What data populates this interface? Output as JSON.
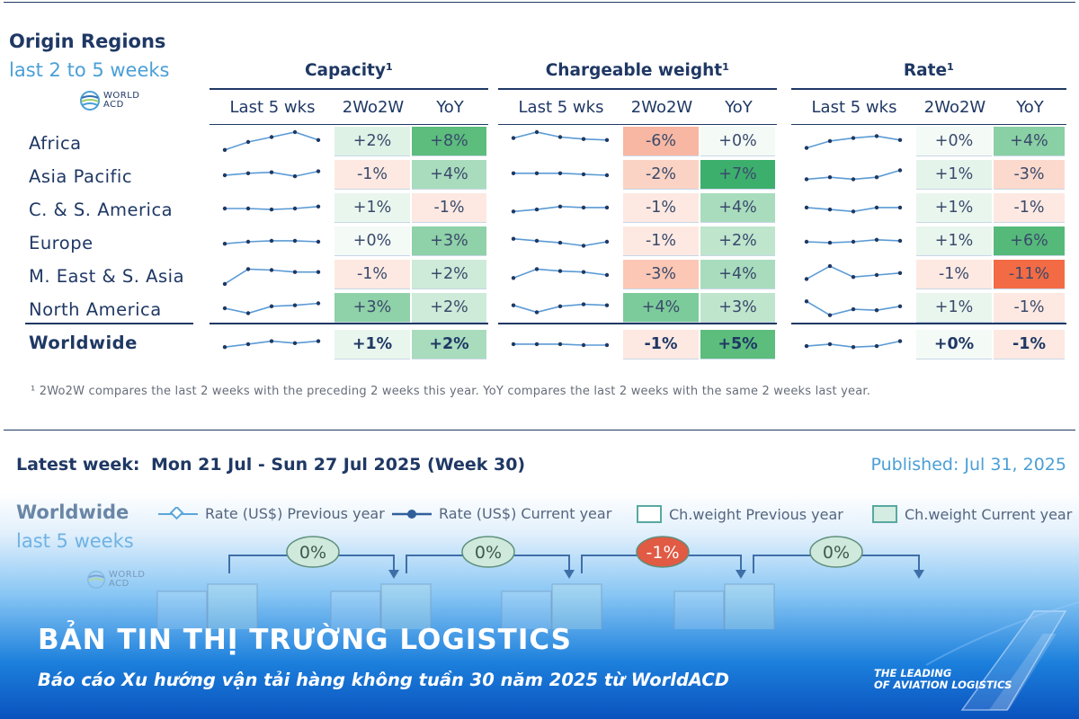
{
  "header": {
    "title": "Origin Regions",
    "subtitle": "last 2 to 5 weeks",
    "logo_line1": "WORLD",
    "logo_line2": "ACD"
  },
  "groups": [
    {
      "title": "Capacity¹",
      "cols": [
        "Last 5 wks",
        "2Wo2W",
        "YoY"
      ]
    },
    {
      "title": "Chargeable weight¹",
      "cols": [
        "Last 5 wks",
        "2Wo2W",
        "YoY"
      ]
    },
    {
      "title": "Rate¹",
      "cols": [
        "Last 5 wks",
        "2Wo2W",
        "YoY"
      ]
    }
  ],
  "rows": [
    {
      "region": "Africa",
      "values": [
        "+2%",
        "+8%",
        "-6%",
        "+0%",
        "+0%",
        "+4%"
      ],
      "sparks": [
        [
          0.1,
          0.5,
          0.75,
          1,
          0.6
        ],
        [
          0.7,
          1,
          0.75,
          0.65,
          0.6
        ],
        [
          0.2,
          0.55,
          0.7,
          0.8,
          0.6
        ]
      ]
    },
    {
      "region": "Asia Pacific",
      "values": [
        "-1%",
        "+4%",
        "-2%",
        "+7%",
        "+1%",
        "-3%"
      ],
      "sparks": [
        [
          0.5,
          0.6,
          0.65,
          0.45,
          0.7
        ],
        [
          0.6,
          0.6,
          0.6,
          0.55,
          0.5
        ],
        [
          0.3,
          0.4,
          0.3,
          0.4,
          0.75
        ]
      ]
    },
    {
      "region": "C. & S. America",
      "values": [
        "+1%",
        "-1%",
        "-1%",
        "+4%",
        "+1%",
        "-1%"
      ],
      "sparks": [
        [
          0.5,
          0.5,
          0.45,
          0.5,
          0.6
        ],
        [
          0.35,
          0.45,
          0.6,
          0.55,
          0.55
        ],
        [
          0.55,
          0.45,
          0.35,
          0.55,
          0.55
        ]
      ]
    },
    {
      "region": "Europe",
      "values": [
        "+0%",
        "+3%",
        "-1%",
        "+2%",
        "+1%",
        "+6%"
      ],
      "sparks": [
        [
          0.4,
          0.5,
          0.55,
          0.55,
          0.5
        ],
        [
          0.65,
          0.55,
          0.45,
          0.3,
          0.5
        ],
        [
          0.5,
          0.45,
          0.5,
          0.6,
          0.55
        ]
      ]
    },
    {
      "region": "M. East & S. Asia",
      "values": [
        "-1%",
        "+2%",
        "-3%",
        "+4%",
        "-1%",
        "-11%"
      ],
      "sparks": [
        [
          0.05,
          0.8,
          0.75,
          0.65,
          0.65
        ],
        [
          0.35,
          0.8,
          0.7,
          0.65,
          0.5
        ],
        [
          0.3,
          0.95,
          0.4,
          0.5,
          0.6
        ]
      ]
    },
    {
      "region": "North America",
      "values": [
        "+3%",
        "+2%",
        "+4%",
        "+3%",
        "+1%",
        "-1%"
      ],
      "sparks": [
        [
          0.5,
          0.25,
          0.6,
          0.65,
          0.75
        ],
        [
          0.65,
          0.3,
          0.6,
          0.7,
          0.65
        ],
        [
          0.85,
          0.15,
          0.45,
          0.4,
          0.6
        ]
      ]
    },
    {
      "region": "Worldwide",
      "values": [
        "+1%",
        "+2%",
        "-1%",
        "+5%",
        "+0%",
        "-1%"
      ],
      "sparks": [
        [
          0.4,
          0.55,
          0.7,
          0.6,
          0.7
        ],
        [
          0.55,
          0.55,
          0.55,
          0.5,
          0.5
        ],
        [
          0.45,
          0.55,
          0.4,
          0.45,
          0.7
        ]
      ]
    }
  ],
  "cell_colors": [
    [
      "#dff2e6",
      "#5cbd7d",
      "#f8b7a2",
      "#f4faf6",
      "#f4faf6",
      "#89d0a4"
    ],
    [
      "#fde9e2",
      "#a8dcbd",
      "#fbd3c4",
      "#3daf6d",
      "#e4f4ea",
      "#fcd9cd"
    ],
    [
      "#e9f6ee",
      "#fde9e2",
      "#fde9e2",
      "#a8dcbd",
      "#e9f6ee",
      "#fde9e2"
    ],
    [
      "#f4faf6",
      "#8fd1a8",
      "#fde9e2",
      "#bfe5cd",
      "#e9f6ee",
      "#55b97a"
    ],
    [
      "#fde9e2",
      "#cdebd8",
      "#fcc7b4",
      "#a8dcbd",
      "#fde9e2",
      "#f26b45"
    ],
    [
      "#8fd1a8",
      "#cdebd8",
      "#7ccb9a",
      "#bfe5cd",
      "#e9f6ee",
      "#fde9e2"
    ],
    [
      "#e9f6ee",
      "#a8dcbd",
      "#fde9e2",
      "#5cbd7d",
      "#f4faf6",
      "#fde9e2"
    ]
  ],
  "footnote": "¹ 2Wo2W compares the last 2 weeks with the preceding 2 weeks this year. YoY compares the last 2 weeks with the same 2 weeks last year.",
  "latest": {
    "label": "Latest week:",
    "period": "Mon 21 Jul - Sun 27 Jul 2025 (Week 30)",
    "published": "Published: Jul 31, 2025"
  },
  "worldwide": {
    "title": "Worldwide",
    "subtitle": "last 5 weeks",
    "legend": [
      {
        "label": "Rate (US$) Previous year",
        "icon": "line-diamond-icon"
      },
      {
        "label": "Rate (US$) Current year",
        "icon": "line-dot-icon"
      },
      {
        "label": "Ch.weight Previous year",
        "icon": "outline-box-icon"
      },
      {
        "label": "Ch.weight Current year",
        "icon": "filled-box-icon"
      }
    ],
    "changes": [
      "0%",
      "0%",
      "-1%",
      "0%"
    ],
    "change_colors": [
      "#cfe9dc",
      "#cfe9dc",
      "#e05a44",
      "#cfe9dc"
    ]
  },
  "banner": {
    "title": "BẢN TIN THỊ TRƯỜNG LOGISTICS",
    "subtitle": "Báo cáo Xu hướng vận tải hàng không tuần 30 năm 2025 từ WorldACD",
    "tagline1": "THE LEADING",
    "tagline2": "OF AVIATION LOGISTICS"
  }
}
